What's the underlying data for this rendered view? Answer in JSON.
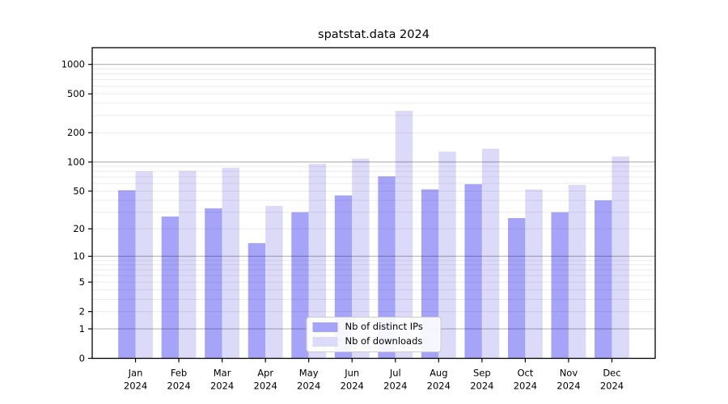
{
  "title": "spatstat.data 2024",
  "chart_data": {
    "type": "bar",
    "title": "spatstat.data 2024",
    "yscale": "log1p",
    "grid": "on",
    "legend_position": "lower center",
    "x_months": [
      "Jan",
      "Feb",
      "Mar",
      "Apr",
      "May",
      "Jun",
      "Jul",
      "Aug",
      "Sep",
      "Oct",
      "Nov",
      "Dec"
    ],
    "x_year": "2024",
    "y_ticks": [
      0,
      1,
      2,
      5,
      10,
      20,
      50,
      100,
      200,
      500,
      1000
    ],
    "y_major_gridlines": [
      1,
      10,
      100,
      1000
    ],
    "y_minor_gridlines": [
      2,
      3,
      4,
      5,
      6,
      7,
      8,
      9,
      20,
      30,
      40,
      50,
      60,
      70,
      80,
      90,
      200,
      300,
      400,
      500,
      600,
      700,
      800,
      900
    ],
    "ylim": [
      0,
      1480
    ],
    "series": [
      {
        "name": "Nb of distinct IPs",
        "color": "#a6a4f8",
        "values": [
          51,
          27,
          33,
          14,
          30,
          45,
          71,
          52,
          59,
          26,
          30,
          40
        ]
      },
      {
        "name": "Nb of downloads",
        "color": "#dcdaf9",
        "values": [
          80,
          81,
          87,
          35,
          96,
          108,
          335,
          128,
          137,
          52,
          58,
          114
        ]
      }
    ]
  },
  "legend": {
    "items": [
      {
        "label": "Nb of distinct IPs",
        "color": "#a6a4f8"
      },
      {
        "label": "Nb of downloads",
        "color": "#dcdaf9"
      }
    ]
  }
}
